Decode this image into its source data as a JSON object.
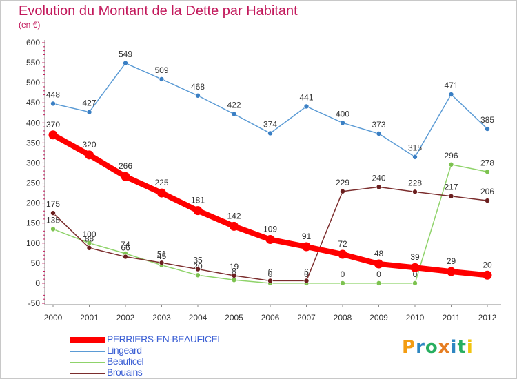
{
  "header": {
    "title": "Evolution du Montant de la Dette par Habitant",
    "subtitle": "(en €)"
  },
  "brand": {
    "text": "Proxiti",
    "letter_colors": [
      "#f39c12",
      "#2e86c1",
      "#27ae60",
      "#e67e22",
      "#2e86c1",
      "#27ae60",
      "#f1c40f"
    ]
  },
  "chart_data": {
    "type": "line",
    "x": [
      "2000",
      "2001",
      "2002",
      "2003",
      "2004",
      "2005",
      "2006",
      "2007",
      "2008",
      "2009",
      "2010",
      "2011",
      "2012"
    ],
    "ylim": [
      -50,
      600
    ],
    "yticks": [
      -50,
      0,
      50,
      100,
      150,
      200,
      250,
      300,
      350,
      400,
      450,
      500,
      550,
      600
    ],
    "grid": false,
    "legend_position": "bottom-left",
    "series": [
      {
        "name": "Lingeard",
        "color": "#5b9bd5",
        "marker_color": "#3a7fc4",
        "values": [
          448,
          427,
          549,
          509,
          468,
          422,
          374,
          441,
          400,
          373,
          315,
          471,
          385
        ]
      },
      {
        "name": "Beauficel",
        "color": "#8fd36a",
        "marker_color": "#7cc24f",
        "values": [
          135,
          100,
          74,
          45,
          20,
          8,
          0,
          0,
          0,
          0,
          0,
          296,
          278
        ]
      },
      {
        "name": "Brouains",
        "color": "#7b2d2d",
        "marker_color": "#6b1f1f",
        "values": [
          175,
          88,
          66,
          51,
          35,
          19,
          6,
          6,
          229,
          240,
          228,
          217,
          206
        ]
      },
      {
        "name": "PERRIERS-EN-BEAUFICEL",
        "color": "#ff0000",
        "marker_color": "#ff0000",
        "values": [
          370,
          320,
          266,
          225,
          181,
          142,
          109,
          91,
          72,
          48,
          39,
          29,
          20
        ]
      }
    ]
  },
  "legend": {
    "items": [
      {
        "label": "PERRIERS-EN-BEAUFICEL",
        "color": "#ff0000",
        "thick": true
      },
      {
        "label": "Lingeard",
        "color": "#5b9bd5",
        "thick": false
      },
      {
        "label": "Beauficel",
        "color": "#8fd36a",
        "thick": false
      },
      {
        "label": "Brouains",
        "color": "#7b2d2d",
        "thick": false
      }
    ]
  }
}
